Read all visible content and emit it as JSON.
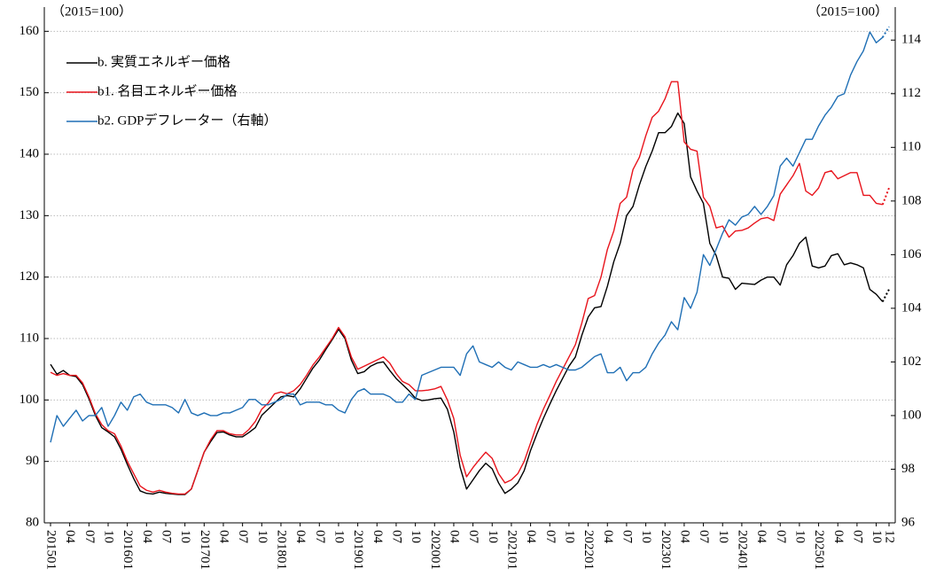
{
  "chart_data": {
    "type": "line",
    "y_unit_label": "（2015=100）",
    "y2_unit_label": "（2015=100）",
    "categories": [
      "201501",
      null,
      null,
      "04",
      null,
      null,
      "07",
      null,
      null,
      "10",
      null,
      null,
      "201601",
      null,
      null,
      "04",
      null,
      null,
      "07",
      null,
      null,
      "10",
      null,
      null,
      "201701",
      null,
      null,
      "04",
      null,
      null,
      "07",
      null,
      null,
      "10",
      null,
      null,
      "201801",
      null,
      null,
      "04",
      null,
      null,
      "07",
      null,
      null,
      "10",
      null,
      null,
      "201901",
      null,
      null,
      "04",
      null,
      null,
      "07",
      null,
      null,
      "10",
      null,
      null,
      "202001",
      null,
      null,
      "04",
      null,
      null,
      "07",
      null,
      null,
      "10",
      null,
      null,
      "202101",
      null,
      null,
      "04",
      null,
      null,
      "07",
      null,
      null,
      "10",
      null,
      null,
      "202201",
      null,
      null,
      "04",
      null,
      null,
      "07",
      null,
      null,
      "10",
      null,
      null,
      "202301",
      null,
      null,
      "04",
      null,
      null,
      "07",
      null,
      null,
      "10",
      null,
      null,
      "202401",
      null,
      null,
      "04",
      null,
      null,
      "07",
      null,
      null,
      "10",
      null,
      null,
      "202501",
      null,
      null,
      "04",
      null,
      null,
      "07",
      null,
      null,
      "10",
      null,
      "12"
    ],
    "ylim": [
      80,
      162.5
    ],
    "yticks": [
      80,
      90,
      100,
      110,
      120,
      130,
      140,
      150,
      160
    ],
    "y2lim": [
      96,
      114.9
    ],
    "y2ticks": [
      96,
      98,
      100,
      102,
      104,
      106,
      108,
      110,
      112,
      114
    ],
    "grid": true,
    "series": [
      {
        "name": "b. 実質エネルギー価格",
        "color": "#000000",
        "dotted_from": 130,
        "values": [
          105.8,
          104.2,
          104.8,
          104.0,
          103.8,
          102.5,
          100.2,
          97.5,
          95.5,
          94.8,
          94.0,
          92.0,
          89.5,
          87.2,
          85.2,
          84.8,
          84.7,
          85.0,
          84.8,
          84.7,
          84.6,
          84.6,
          85.5,
          88.5,
          91.5,
          93.2,
          94.7,
          94.8,
          94.3,
          94.0,
          94.0,
          94.7,
          95.5,
          97.5,
          98.5,
          99.5,
          100.5,
          100.7,
          100.5,
          101.8,
          103.5,
          105.2,
          106.5,
          108.2,
          109.8,
          111.5,
          110.0,
          106.5,
          104.3,
          104.6,
          105.5,
          106.0,
          106.2,
          104.8,
          103.5,
          102.5,
          101.5,
          100.3,
          99.9,
          100.0,
          100.2,
          100.3,
          98.5,
          94.8,
          89.0,
          85.5,
          87.0,
          88.5,
          89.7,
          88.8,
          86.5,
          84.8,
          85.5,
          86.5,
          88.5,
          91.8,
          94.5,
          97.0,
          99.3,
          101.5,
          103.5,
          105.5,
          107.0,
          110.5,
          113.5,
          115.0,
          115.2,
          118.5,
          122.5,
          125.5,
          130.0,
          131.5,
          135.0,
          138.0,
          140.5,
          143.5,
          143.5,
          144.5,
          146.7,
          145.0,
          136.3,
          134.0,
          132.0,
          125.5,
          123.5,
          120.0,
          119.8,
          118.0,
          119.0,
          118.9,
          118.8,
          119.5,
          120.0,
          120.0,
          118.7,
          122.0,
          123.5,
          125.5,
          126.5,
          121.8,
          121.5,
          121.8,
          123.5,
          123.8,
          122.0,
          122.3,
          122.0,
          121.5,
          118.0,
          117.2,
          116.0,
          118.0
        ]
      },
      {
        "name": "b1. 名目エネルギー価格",
        "color": "#e8141c",
        "dotted_from": 130,
        "values": [
          104.5,
          104.0,
          104.3,
          104.0,
          104.0,
          102.8,
          100.5,
          97.8,
          96.0,
          95.0,
          94.5,
          92.5,
          90.0,
          88.0,
          86.0,
          85.3,
          85.0,
          85.3,
          85.0,
          84.8,
          84.7,
          84.7,
          85.5,
          88.5,
          91.5,
          93.5,
          95.0,
          95.0,
          94.5,
          94.3,
          94.3,
          95.2,
          96.5,
          98.5,
          99.5,
          101.0,
          101.3,
          101.0,
          101.5,
          102.5,
          104.0,
          105.7,
          107.0,
          108.5,
          110.0,
          111.8,
          110.3,
          107.0,
          105.0,
          105.5,
          106.0,
          106.5,
          107.0,
          106.0,
          104.3,
          103.0,
          102.5,
          101.5,
          101.5,
          101.6,
          101.8,
          102.2,
          100.0,
          97.0,
          91.0,
          87.5,
          89.0,
          90.3,
          91.5,
          90.5,
          88.0,
          86.5,
          87.0,
          88.0,
          90.0,
          93.0,
          96.0,
          98.5,
          100.7,
          103.0,
          105.0,
          107.0,
          109.0,
          112.5,
          116.5,
          117.0,
          120.0,
          124.5,
          127.5,
          132.0,
          133.0,
          137.5,
          139.5,
          143.0,
          146.0,
          147.0,
          149.0,
          151.8,
          151.8,
          142.0,
          140.8,
          140.5,
          133.0,
          131.5,
          128.0,
          128.3,
          126.5,
          127.5,
          127.6,
          128.0,
          128.8,
          129.5,
          129.7,
          129.2,
          133.5,
          135.0,
          136.5,
          138.5,
          134.0,
          133.3,
          134.5,
          137.0,
          137.3,
          136.0,
          136.5,
          137.0,
          137.0,
          133.3,
          133.3,
          132.0,
          131.8,
          134.5
        ]
      },
      {
        "name": "b2. GDPデフレーター（右軸）",
        "color": "#1f6fb5",
        "axis": "y2",
        "dotted_from": 130,
        "values": [
          99.0,
          100.0,
          99.6,
          99.9,
          100.2,
          99.8,
          100.0,
          100.0,
          100.3,
          99.6,
          100.0,
          100.5,
          100.2,
          100.7,
          100.8,
          100.5,
          100.4,
          100.4,
          100.4,
          100.3,
          100.1,
          100.6,
          100.1,
          100.0,
          100.1,
          100.0,
          100.0,
          100.1,
          100.1,
          100.2,
          100.3,
          100.6,
          100.6,
          100.4,
          100.4,
          100.5,
          100.6,
          100.8,
          100.8,
          100.4,
          100.5,
          100.5,
          100.5,
          100.4,
          100.4,
          100.2,
          100.1,
          100.6,
          100.9,
          101.0,
          100.8,
          100.8,
          100.8,
          100.7,
          100.5,
          100.5,
          100.8,
          100.6,
          101.5,
          101.6,
          101.7,
          101.8,
          101.8,
          101.8,
          101.5,
          102.3,
          102.6,
          102.0,
          101.9,
          101.8,
          102.0,
          101.8,
          101.7,
          102.0,
          101.9,
          101.8,
          101.8,
          101.9,
          101.8,
          101.9,
          101.8,
          101.7,
          101.7,
          101.8,
          102.0,
          102.2,
          102.3,
          101.6,
          101.6,
          101.8,
          101.3,
          101.6,
          101.6,
          101.8,
          102.3,
          102.7,
          103.0,
          103.5,
          103.2,
          104.4,
          104.0,
          104.6,
          106.0,
          105.6,
          106.2,
          106.8,
          107.3,
          107.1,
          107.4,
          107.5,
          107.8,
          107.5,
          107.8,
          108.2,
          109.3,
          109.6,
          109.3,
          109.8,
          110.3,
          110.3,
          110.8,
          111.2,
          111.5,
          111.9,
          112.0,
          112.7,
          113.2,
          113.6,
          114.3,
          113.9,
          114.1,
          114.5
        ]
      }
    ]
  }
}
